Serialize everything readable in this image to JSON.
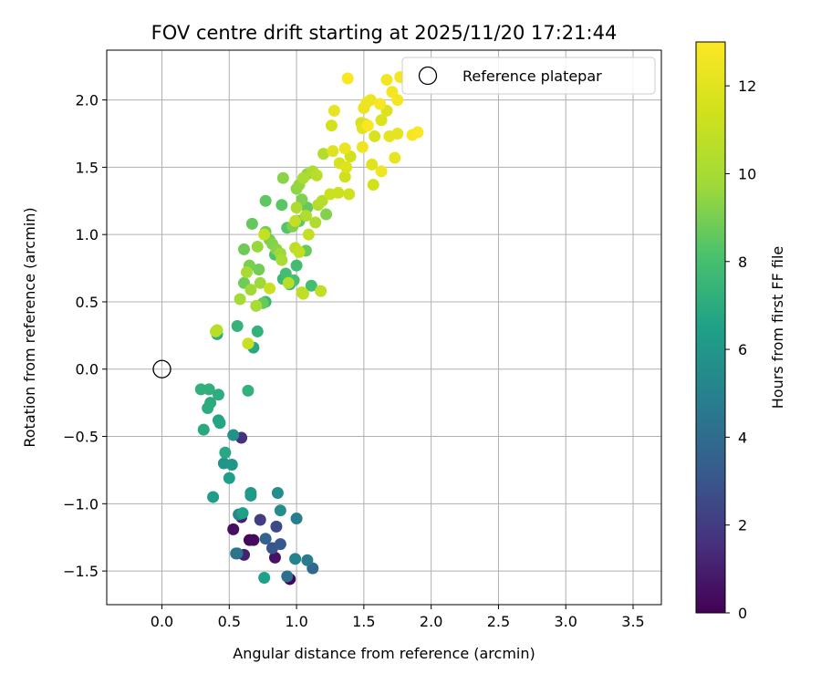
{
  "chart_data": {
    "type": "scatter",
    "title": "FOV centre drift starting at 2025/11/20 17:21:44",
    "xlabel": "Angular distance from reference (arcmin)",
    "ylabel": "Rotation from reference (arcmin)",
    "xlim": [
      -0.41,
      3.71
    ],
    "ylim": [
      -1.75,
      2.37
    ],
    "x_ticks": [
      0.0,
      0.5,
      1.0,
      1.5,
      2.0,
      2.5,
      3.0,
      3.5
    ],
    "x_tick_labels": [
      "0.0",
      "0.5",
      "1.0",
      "1.5",
      "2.0",
      "2.5",
      "3.0",
      "3.5"
    ],
    "y_ticks": [
      -1.5,
      -1.0,
      -0.5,
      0.0,
      0.5,
      1.0,
      1.5,
      2.0
    ],
    "y_tick_labels": [
      "−1.5",
      "−1.0",
      "−0.5",
      "0.0",
      "0.5",
      "1.0",
      "1.5",
      "2.0"
    ],
    "grid": true,
    "legend": {
      "position": "top-right",
      "entries": [
        "Reference platepar"
      ]
    },
    "reference_point": {
      "name": "Reference platepar",
      "x": 0.0,
      "y": 0.0
    },
    "colorbar": {
      "label": "Hours from first FF file",
      "colormap": "viridis",
      "range": [
        0,
        13
      ],
      "ticks": [
        0,
        2,
        4,
        6,
        8,
        10,
        12
      ],
      "tick_labels": [
        "0",
        "2",
        "4",
        "6",
        "8",
        "10",
        "12"
      ]
    },
    "points": [
      {
        "x": 0.95,
        "y": -1.56,
        "h": 0.1
      },
      {
        "x": 0.65,
        "y": -1.27,
        "h": 0.2
      },
      {
        "x": 0.68,
        "y": -1.27,
        "h": 0.3
      },
      {
        "x": 0.53,
        "y": -1.19,
        "h": 0.5
      },
      {
        "x": 0.84,
        "y": -1.4,
        "h": 0.6
      },
      {
        "x": 0.59,
        "y": -1.1,
        "h": 1.0
      },
      {
        "x": 0.61,
        "y": -1.38,
        "h": 1.1
      },
      {
        "x": 0.59,
        "y": -0.51,
        "h": 1.6
      },
      {
        "x": 0.73,
        "y": -1.12,
        "h": 2.0
      },
      {
        "x": 0.85,
        "y": -1.17,
        "h": 2.6
      },
      {
        "x": 0.82,
        "y": -1.33,
        "h": 3.0
      },
      {
        "x": 0.88,
        "y": -1.3,
        "h": 3.1
      },
      {
        "x": 0.77,
        "y": -1.26,
        "h": 3.6
      },
      {
        "x": 1.12,
        "y": -1.48,
        "h": 3.8
      },
      {
        "x": 0.56,
        "y": -1.37,
        "h": 3.9
      },
      {
        "x": 0.93,
        "y": -1.54,
        "h": 4.1
      },
      {
        "x": 0.55,
        "y": -1.37,
        "h": 4.3
      },
      {
        "x": 1.08,
        "y": -1.42,
        "h": 4.7
      },
      {
        "x": 1.0,
        "y": -1.11,
        "h": 4.8
      },
      {
        "x": 0.99,
        "y": -1.41,
        "h": 5.0
      },
      {
        "x": 0.57,
        "y": -1.08,
        "h": 5.3
      },
      {
        "x": 0.88,
        "y": -1.05,
        "h": 5.5
      },
      {
        "x": 0.86,
        "y": -0.92,
        "h": 5.6
      },
      {
        "x": 0.53,
        "y": -0.49,
        "h": 5.7
      },
      {
        "x": 0.46,
        "y": -0.7,
        "h": 5.9
      },
      {
        "x": 0.52,
        "y": -0.71,
        "h": 6.0
      },
      {
        "x": 0.66,
        "y": -0.92,
        "h": 6.1
      },
      {
        "x": 0.66,
        "y": -0.94,
        "h": 6.2
      },
      {
        "x": 0.38,
        "y": -0.95,
        "h": 6.3
      },
      {
        "x": 0.5,
        "y": -0.81,
        "h": 6.4
      },
      {
        "x": 0.6,
        "y": -1.07,
        "h": 6.5
      },
      {
        "x": 0.42,
        "y": -0.38,
        "h": 6.6
      },
      {
        "x": 0.43,
        "y": -0.4,
        "h": 6.7
      },
      {
        "x": 0.47,
        "y": -0.62,
        "h": 6.8
      },
      {
        "x": 0.31,
        "y": -0.45,
        "h": 6.9
      },
      {
        "x": 0.34,
        "y": -0.29,
        "h": 7.0
      },
      {
        "x": 0.36,
        "y": -0.25,
        "h": 7.0
      },
      {
        "x": 0.42,
        "y": -0.19,
        "h": 7.1
      },
      {
        "x": 0.29,
        "y": -0.15,
        "h": 7.2
      },
      {
        "x": 0.35,
        "y": -0.15,
        "h": 7.2
      },
      {
        "x": 0.64,
        "y": -0.16,
        "h": 7.3
      },
      {
        "x": 0.76,
        "y": -1.55,
        "h": 6.5
      },
      {
        "x": 0.68,
        "y": 0.16,
        "h": 6.8
      },
      {
        "x": 0.41,
        "y": 0.26,
        "h": 7.0
      },
      {
        "x": 0.71,
        "y": 0.28,
        "h": 7.3
      },
      {
        "x": 0.56,
        "y": 0.32,
        "h": 7.4
      },
      {
        "x": 0.77,
        "y": 0.5,
        "h": 7.5
      },
      {
        "x": 0.9,
        "y": 0.67,
        "h": 7.6
      },
      {
        "x": 0.95,
        "y": 0.63,
        "h": 7.7
      },
      {
        "x": 1.0,
        "y": 0.77,
        "h": 7.8
      },
      {
        "x": 0.92,
        "y": 0.71,
        "h": 7.9
      },
      {
        "x": 1.11,
        "y": 0.62,
        "h": 7.9
      },
      {
        "x": 0.98,
        "y": 0.66,
        "h": 8.0
      },
      {
        "x": 0.84,
        "y": 0.85,
        "h": 8.2
      },
      {
        "x": 0.93,
        "y": 1.05,
        "h": 8.3
      },
      {
        "x": 0.89,
        "y": 1.22,
        "h": 8.4
      },
      {
        "x": 1.02,
        "y": 1.1,
        "h": 8.5
      },
      {
        "x": 0.77,
        "y": 1.25,
        "h": 8.5
      },
      {
        "x": 0.67,
        "y": 1.08,
        "h": 8.6
      },
      {
        "x": 1.08,
        "y": 1.2,
        "h": 8.6
      },
      {
        "x": 1.07,
        "y": 0.88,
        "h": 8.7
      },
      {
        "x": 0.75,
        "y": 0.49,
        "h": 8.7
      },
      {
        "x": 0.61,
        "y": 0.64,
        "h": 8.8
      },
      {
        "x": 0.61,
        "y": 0.89,
        "h": 8.8
      },
      {
        "x": 0.72,
        "y": 0.74,
        "h": 8.9
      },
      {
        "x": 0.77,
        "y": 1.02,
        "h": 8.9
      },
      {
        "x": 0.65,
        "y": 0.77,
        "h": 9.0
      },
      {
        "x": 0.8,
        "y": 0.96,
        "h": 9.0
      },
      {
        "x": 0.97,
        "y": 1.06,
        "h": 9.1
      },
      {
        "x": 1.04,
        "y": 1.26,
        "h": 9.1
      },
      {
        "x": 1.22,
        "y": 1.15,
        "h": 9.2
      },
      {
        "x": 0.82,
        "y": 0.93,
        "h": 9.2
      },
      {
        "x": 0.85,
        "y": 0.89,
        "h": 9.3
      },
      {
        "x": 0.9,
        "y": 1.42,
        "h": 9.3
      },
      {
        "x": 1.0,
        "y": 1.34,
        "h": 9.4
      },
      {
        "x": 1.08,
        "y": 1.45,
        "h": 9.5
      },
      {
        "x": 1.02,
        "y": 1.37,
        "h": 9.5
      },
      {
        "x": 0.71,
        "y": 0.91,
        "h": 9.6
      },
      {
        "x": 0.73,
        "y": 0.64,
        "h": 9.7
      },
      {
        "x": 0.88,
        "y": 0.86,
        "h": 9.7
      },
      {
        "x": 0.66,
        "y": 0.59,
        "h": 9.8
      },
      {
        "x": 0.58,
        "y": 0.52,
        "h": 9.9
      },
      {
        "x": 0.7,
        "y": 0.47,
        "h": 10.0
      },
      {
        "x": 0.63,
        "y": 0.72,
        "h": 10.0
      },
      {
        "x": 0.89,
        "y": 0.81,
        "h": 10.1
      },
      {
        "x": 1.05,
        "y": 1.42,
        "h": 10.1
      },
      {
        "x": 1.12,
        "y": 1.47,
        "h": 10.2
      },
      {
        "x": 1.0,
        "y": 1.2,
        "h": 10.2
      },
      {
        "x": 1.14,
        "y": 1.09,
        "h": 10.3
      },
      {
        "x": 1.07,
        "y": 1.14,
        "h": 10.3
      },
      {
        "x": 1.2,
        "y": 1.6,
        "h": 10.4
      },
      {
        "x": 1.16,
        "y": 1.22,
        "h": 10.4
      },
      {
        "x": 1.19,
        "y": 1.25,
        "h": 10.5
      },
      {
        "x": 1.15,
        "y": 1.44,
        "h": 10.6
      },
      {
        "x": 0.94,
        "y": 0.64,
        "h": 10.6
      },
      {
        "x": 0.99,
        "y": 0.9,
        "h": 10.7
      },
      {
        "x": 1.04,
        "y": 0.57,
        "h": 10.7
      },
      {
        "x": 1.05,
        "y": 0.56,
        "h": 10.8
      },
      {
        "x": 1.18,
        "y": 0.58,
        "h": 10.8
      },
      {
        "x": 1.02,
        "y": 0.87,
        "h": 10.9
      },
      {
        "x": 0.99,
        "y": 1.1,
        "h": 10.9
      },
      {
        "x": 1.09,
        "y": 1.0,
        "h": 11.0
      },
      {
        "x": 0.76,
        "y": 1.0,
        "h": 11.0
      },
      {
        "x": 0.8,
        "y": 0.6,
        "h": 11.1
      },
      {
        "x": 0.64,
        "y": 0.19,
        "h": 11.1
      },
      {
        "x": 0.4,
        "y": 0.28,
        "h": 10.5
      },
      {
        "x": 0.41,
        "y": 0.29,
        "h": 10.6
      },
      {
        "x": 1.31,
        "y": 1.31,
        "h": 11.2
      },
      {
        "x": 1.25,
        "y": 1.3,
        "h": 11.2
      },
      {
        "x": 1.39,
        "y": 1.3,
        "h": 11.3
      },
      {
        "x": 1.36,
        "y": 1.43,
        "h": 11.3
      },
      {
        "x": 1.4,
        "y": 1.58,
        "h": 11.4
      },
      {
        "x": 1.57,
        "y": 1.37,
        "h": 11.4
      },
      {
        "x": 1.51,
        "y": 1.82,
        "h": 11.5
      },
      {
        "x": 1.26,
        "y": 1.81,
        "h": 11.5
      },
      {
        "x": 1.32,
        "y": 1.53,
        "h": 11.6
      },
      {
        "x": 1.48,
        "y": 1.83,
        "h": 11.7
      },
      {
        "x": 1.58,
        "y": 1.73,
        "h": 11.7
      },
      {
        "x": 1.67,
        "y": 1.92,
        "h": 11.8
      },
      {
        "x": 1.63,
        "y": 1.85,
        "h": 11.8
      },
      {
        "x": 1.27,
        "y": 1.62,
        "h": 11.9
      },
      {
        "x": 1.37,
        "y": 1.5,
        "h": 11.9
      },
      {
        "x": 1.56,
        "y": 1.52,
        "h": 12.0
      },
      {
        "x": 1.49,
        "y": 1.79,
        "h": 12.0
      },
      {
        "x": 1.69,
        "y": 1.73,
        "h": 12.1
      },
      {
        "x": 1.75,
        "y": 1.75,
        "h": 12.1
      },
      {
        "x": 1.73,
        "y": 1.57,
        "h": 12.2
      },
      {
        "x": 1.28,
        "y": 1.92,
        "h": 12.2
      },
      {
        "x": 1.36,
        "y": 1.64,
        "h": 12.3
      },
      {
        "x": 1.5,
        "y": 1.94,
        "h": 12.3
      },
      {
        "x": 1.52,
        "y": 1.98,
        "h": 12.4
      },
      {
        "x": 1.55,
        "y": 2.0,
        "h": 12.4
      },
      {
        "x": 1.63,
        "y": 1.47,
        "h": 12.5
      },
      {
        "x": 1.49,
        "y": 1.65,
        "h": 12.5
      },
      {
        "x": 1.67,
        "y": 2.15,
        "h": 12.6
      },
      {
        "x": 1.71,
        "y": 2.06,
        "h": 12.6
      },
      {
        "x": 1.75,
        "y": 2.0,
        "h": 12.7
      },
      {
        "x": 1.77,
        "y": 2.17,
        "h": 12.7
      },
      {
        "x": 1.62,
        "y": 1.97,
        "h": 12.8
      },
      {
        "x": 1.86,
        "y": 1.74,
        "h": 12.8
      },
      {
        "x": 1.9,
        "y": 1.76,
        "h": 12.9
      },
      {
        "x": 1.38,
        "y": 2.16,
        "h": 12.9
      },
      {
        "x": 1.53,
        "y": 1.81,
        "h": 12.9
      }
    ]
  }
}
